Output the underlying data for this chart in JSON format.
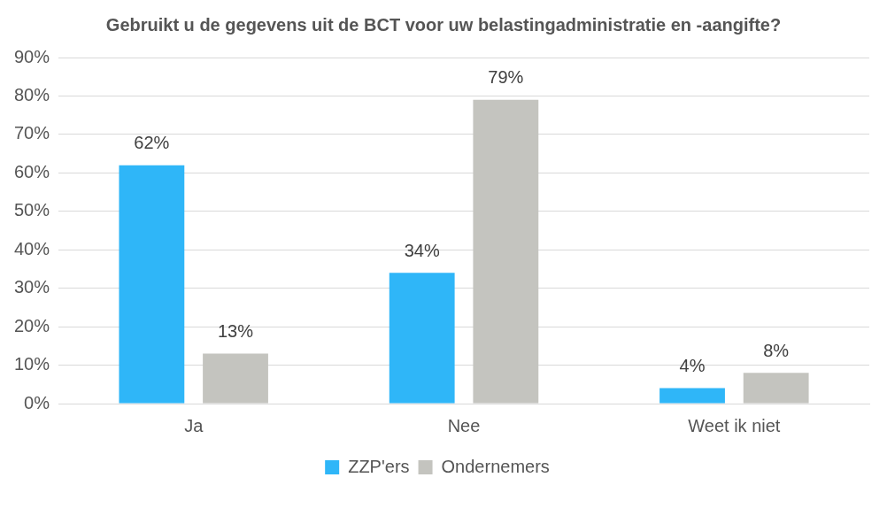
{
  "chart_data": {
    "type": "bar",
    "title": "Gebruikt u de gegevens uit de BCT voor uw belastingadministratie en -aangifte?",
    "categories": [
      "Ja",
      "Nee",
      "Weet ik niet"
    ],
    "series": [
      {
        "name": "ZZP'ers",
        "color": "#2fb6f8",
        "values": [
          62,
          34,
          4
        ]
      },
      {
        "name": "Ondernemers",
        "color": "#c4c4bf",
        "values": [
          13,
          79,
          8
        ]
      }
    ],
    "ylim": [
      0,
      90
    ],
    "yticks": [
      {
        "value": 0,
        "label": "0%"
      },
      {
        "value": 10,
        "label": "10%"
      },
      {
        "value": 20,
        "label": "20%"
      },
      {
        "value": 30,
        "label": "30%"
      },
      {
        "value": 40,
        "label": "40%"
      },
      {
        "value": 50,
        "label": "50%"
      },
      {
        "value": 60,
        "label": "60%"
      },
      {
        "value": 70,
        "label": "70%"
      },
      {
        "value": 80,
        "label": "80%"
      },
      {
        "value": 90,
        "label": "90%"
      }
    ],
    "value_labels": [
      [
        "62%",
        "34%",
        "4%"
      ],
      [
        "13%",
        "79%",
        "8%"
      ]
    ],
    "grid": "y",
    "legend": "bottom"
  }
}
